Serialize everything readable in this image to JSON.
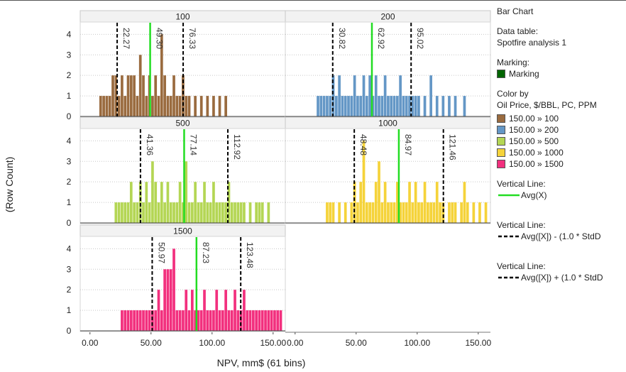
{
  "chart_data": {
    "type": "bar",
    "title": "Bar Chart",
    "xlabel": "NPV, mm$ (61 bins)",
    "ylabel": "(Row Count)",
    "xlim": [
      -8,
      160
    ],
    "ylim": [
      0,
      4.6
    ],
    "x_ticks": [
      "0.00",
      "50.00",
      "100.00",
      "150.00"
    ],
    "x_tick_values": [
      0,
      50,
      100,
      150
    ],
    "y_ticks": [
      0,
      1,
      2,
      3,
      4
    ],
    "bin_width": 2.5,
    "panels": [
      {
        "name": "100",
        "color": "#9a6b3f",
        "avg": 49.3,
        "minus_sd": 22.27,
        "plus_sd": 76.33,
        "bins": [
          [
            7.5,
            1
          ],
          [
            10,
            1
          ],
          [
            12.5,
            1
          ],
          [
            15,
            1
          ],
          [
            17.5,
            2
          ],
          [
            20,
            2
          ],
          [
            22.5,
            1
          ],
          [
            25,
            2
          ],
          [
            27.5,
            1
          ],
          [
            30,
            2
          ],
          [
            32.5,
            2
          ],
          [
            35,
            2
          ],
          [
            37.5,
            1
          ],
          [
            40,
            3
          ],
          [
            42.5,
            2
          ],
          [
            45,
            1
          ],
          [
            47.5,
            2
          ],
          [
            50,
            1
          ],
          [
            52.5,
            2
          ],
          [
            55,
            1
          ],
          [
            57.5,
            4
          ],
          [
            60,
            2
          ],
          [
            62.5,
            1
          ],
          [
            65,
            1
          ],
          [
            67.5,
            2
          ],
          [
            70,
            1
          ],
          [
            72.5,
            1
          ],
          [
            75,
            2
          ],
          [
            77.5,
            1
          ],
          [
            80,
            1
          ],
          [
            85,
            1
          ],
          [
            90,
            1
          ],
          [
            95,
            1
          ],
          [
            100,
            1
          ],
          [
            105,
            1
          ],
          [
            110,
            1
          ]
        ]
      },
      {
        "name": "200",
        "color": "#6497c6",
        "avg": 62.92,
        "minus_sd": 30.82,
        "plus_sd": 95.02,
        "bins": [
          [
            17.5,
            1
          ],
          [
            20,
            1
          ],
          [
            22.5,
            1
          ],
          [
            25,
            1
          ],
          [
            27.5,
            1
          ],
          [
            30,
            2
          ],
          [
            32.5,
            1
          ],
          [
            35,
            2
          ],
          [
            37.5,
            1
          ],
          [
            40,
            1
          ],
          [
            42.5,
            1
          ],
          [
            45,
            1
          ],
          [
            47.5,
            2
          ],
          [
            50,
            1
          ],
          [
            52.5,
            1
          ],
          [
            55,
            2
          ],
          [
            57.5,
            1
          ],
          [
            60,
            2
          ],
          [
            62.5,
            1
          ],
          [
            65,
            2
          ],
          [
            67.5,
            1
          ],
          [
            70,
            1
          ],
          [
            72.5,
            2
          ],
          [
            75,
            1
          ],
          [
            77.5,
            1
          ],
          [
            80,
            1
          ],
          [
            82.5,
            1
          ],
          [
            85,
            2
          ],
          [
            87.5,
            1
          ],
          [
            90,
            1
          ],
          [
            92.5,
            1
          ],
          [
            95,
            1
          ],
          [
            97.5,
            1
          ],
          [
            100,
            1
          ],
          [
            105,
            1
          ],
          [
            110,
            2
          ],
          [
            115,
            1
          ],
          [
            120,
            1
          ],
          [
            125,
            1
          ],
          [
            130,
            1
          ],
          [
            137.5,
            1
          ]
        ]
      },
      {
        "name": "500",
        "color": "#b4d654",
        "avg": 77.14,
        "minus_sd": 41.36,
        "plus_sd": 112.92,
        "bins": [
          [
            20,
            1
          ],
          [
            22.5,
            1
          ],
          [
            25,
            1
          ],
          [
            27.5,
            1
          ],
          [
            30,
            1
          ],
          [
            32.5,
            2
          ],
          [
            35,
            1
          ],
          [
            37.5,
            1
          ],
          [
            40,
            2
          ],
          [
            42.5,
            1
          ],
          [
            45,
            2
          ],
          [
            47.5,
            1
          ],
          [
            50,
            3
          ],
          [
            52.5,
            2
          ],
          [
            55,
            1
          ],
          [
            57.5,
            2
          ],
          [
            60,
            1
          ],
          [
            62.5,
            2
          ],
          [
            65,
            1
          ],
          [
            67.5,
            1
          ],
          [
            70,
            1
          ],
          [
            72.5,
            2
          ],
          [
            75,
            1
          ],
          [
            77.5,
            3
          ],
          [
            80,
            1
          ],
          [
            82.5,
            1
          ],
          [
            85,
            2
          ],
          [
            87.5,
            1
          ],
          [
            90,
            1
          ],
          [
            92.5,
            2
          ],
          [
            95,
            1
          ],
          [
            97.5,
            1
          ],
          [
            100,
            2
          ],
          [
            102.5,
            1
          ],
          [
            105,
            1
          ],
          [
            107.5,
            1
          ],
          [
            110,
            1
          ],
          [
            112.5,
            2
          ],
          [
            115,
            1
          ],
          [
            117.5,
            1
          ],
          [
            120,
            1
          ],
          [
            122.5,
            1
          ],
          [
            125,
            1
          ],
          [
            130,
            1
          ],
          [
            135,
            1
          ],
          [
            137.5,
            1
          ],
          [
            140,
            1
          ],
          [
            145,
            1
          ]
        ]
      },
      {
        "name": "1000",
        "color": "#f5d33a",
        "avg": 84.97,
        "minus_sd": 48.48,
        "plus_sd": 121.46,
        "bins": [
          [
            25,
            1
          ],
          [
            27.5,
            1
          ],
          [
            30,
            1
          ],
          [
            35,
            1
          ],
          [
            40,
            1
          ],
          [
            45,
            1
          ],
          [
            47.5,
            2
          ],
          [
            50,
            1
          ],
          [
            52.5,
            2
          ],
          [
            55,
            4
          ],
          [
            57.5,
            1
          ],
          [
            60,
            1
          ],
          [
            62.5,
            1
          ],
          [
            65,
            2
          ],
          [
            67.5,
            3
          ],
          [
            70,
            1
          ],
          [
            72.5,
            2
          ],
          [
            75,
            1
          ],
          [
            77.5,
            1
          ],
          [
            80,
            1
          ],
          [
            82.5,
            2
          ],
          [
            85,
            1
          ],
          [
            87.5,
            1
          ],
          [
            90,
            1
          ],
          [
            92.5,
            2
          ],
          [
            95,
            1
          ],
          [
            97.5,
            2
          ],
          [
            100,
            1
          ],
          [
            102.5,
            1
          ],
          [
            105,
            2
          ],
          [
            107.5,
            1
          ],
          [
            110,
            1
          ],
          [
            112.5,
            1
          ],
          [
            115,
            2
          ],
          [
            117.5,
            1
          ],
          [
            120,
            1
          ],
          [
            125,
            1
          ],
          [
            127.5,
            1
          ],
          [
            130,
            1
          ],
          [
            135,
            1
          ],
          [
            137.5,
            2
          ],
          [
            140,
            1
          ],
          [
            145,
            1
          ],
          [
            150,
            1
          ],
          [
            155,
            1
          ]
        ]
      },
      {
        "name": "1500",
        "color": "#f2307e",
        "avg": 87.23,
        "minus_sd": 50.97,
        "plus_sd": 123.48,
        "bins": [
          [
            25,
            1
          ],
          [
            27.5,
            1
          ],
          [
            30,
            1
          ],
          [
            32.5,
            1
          ],
          [
            35,
            1
          ],
          [
            37.5,
            1
          ],
          [
            40,
            1
          ],
          [
            42.5,
            1
          ],
          [
            45,
            1
          ],
          [
            47.5,
            1
          ],
          [
            50,
            1
          ],
          [
            52.5,
            1
          ],
          [
            55,
            2
          ],
          [
            57.5,
            1
          ],
          [
            60,
            3
          ],
          [
            62.5,
            3
          ],
          [
            65,
            3
          ],
          [
            67.5,
            4
          ],
          [
            70,
            1
          ],
          [
            72.5,
            1
          ],
          [
            75,
            1
          ],
          [
            77.5,
            2
          ],
          [
            80,
            1
          ],
          [
            82.5,
            2
          ],
          [
            85,
            1
          ],
          [
            87.5,
            1
          ],
          [
            90,
            1
          ],
          [
            92.5,
            2
          ],
          [
            95,
            1
          ],
          [
            97.5,
            1
          ],
          [
            100,
            1
          ],
          [
            102.5,
            2
          ],
          [
            105,
            1
          ],
          [
            107.5,
            1
          ],
          [
            110,
            2
          ],
          [
            112.5,
            1
          ],
          [
            115,
            1
          ],
          [
            117.5,
            2
          ],
          [
            120,
            1
          ],
          [
            122.5,
            1
          ],
          [
            125,
            2
          ],
          [
            127.5,
            1
          ],
          [
            130,
            1
          ],
          [
            132.5,
            1
          ],
          [
            135,
            1
          ],
          [
            137.5,
            1
          ],
          [
            140,
            1
          ],
          [
            142.5,
            1
          ],
          [
            145,
            1
          ],
          [
            147.5,
            1
          ],
          [
            150,
            1
          ],
          [
            152.5,
            1
          ],
          [
            155,
            1
          ]
        ]
      }
    ],
    "legend_placement": "right",
    "grid": "horizontal dotted"
  },
  "legend": {
    "title": "Bar Chart",
    "data_table_label": "Data table:",
    "data_table_value": "Spotfire analysis 1",
    "marking_label": "Marking:",
    "marking_item": "Marking",
    "marking_color": "#006400",
    "color_by_label": "Color by",
    "color_by_value": "Oil Price, $/BBL, PC, PPM",
    "color_items": [
      {
        "label": "150.00 » 100",
        "color": "#9a6b3f"
      },
      {
        "label": "150.00 » 200",
        "color": "#6497c6"
      },
      {
        "label": "150.00 » 500",
        "color": "#b4d654"
      },
      {
        "label": "150.00 » 1000",
        "color": "#f5d33a"
      },
      {
        "label": "150.00 » 1500",
        "color": "#f2307e"
      }
    ],
    "lines": [
      {
        "label": "Vertical Line:",
        "item": "Avg(X)",
        "color": "#22dd22",
        "style": "solid"
      },
      {
        "label": "Vertical Line:",
        "item": "Avg([X]) - (1.0 * StdD",
        "color": "#000000",
        "style": "dashed"
      },
      {
        "label": "Vertical Line:",
        "item": "Avg([X]) + (1.0 * StdD",
        "color": "#000000",
        "style": "dashed"
      }
    ]
  }
}
